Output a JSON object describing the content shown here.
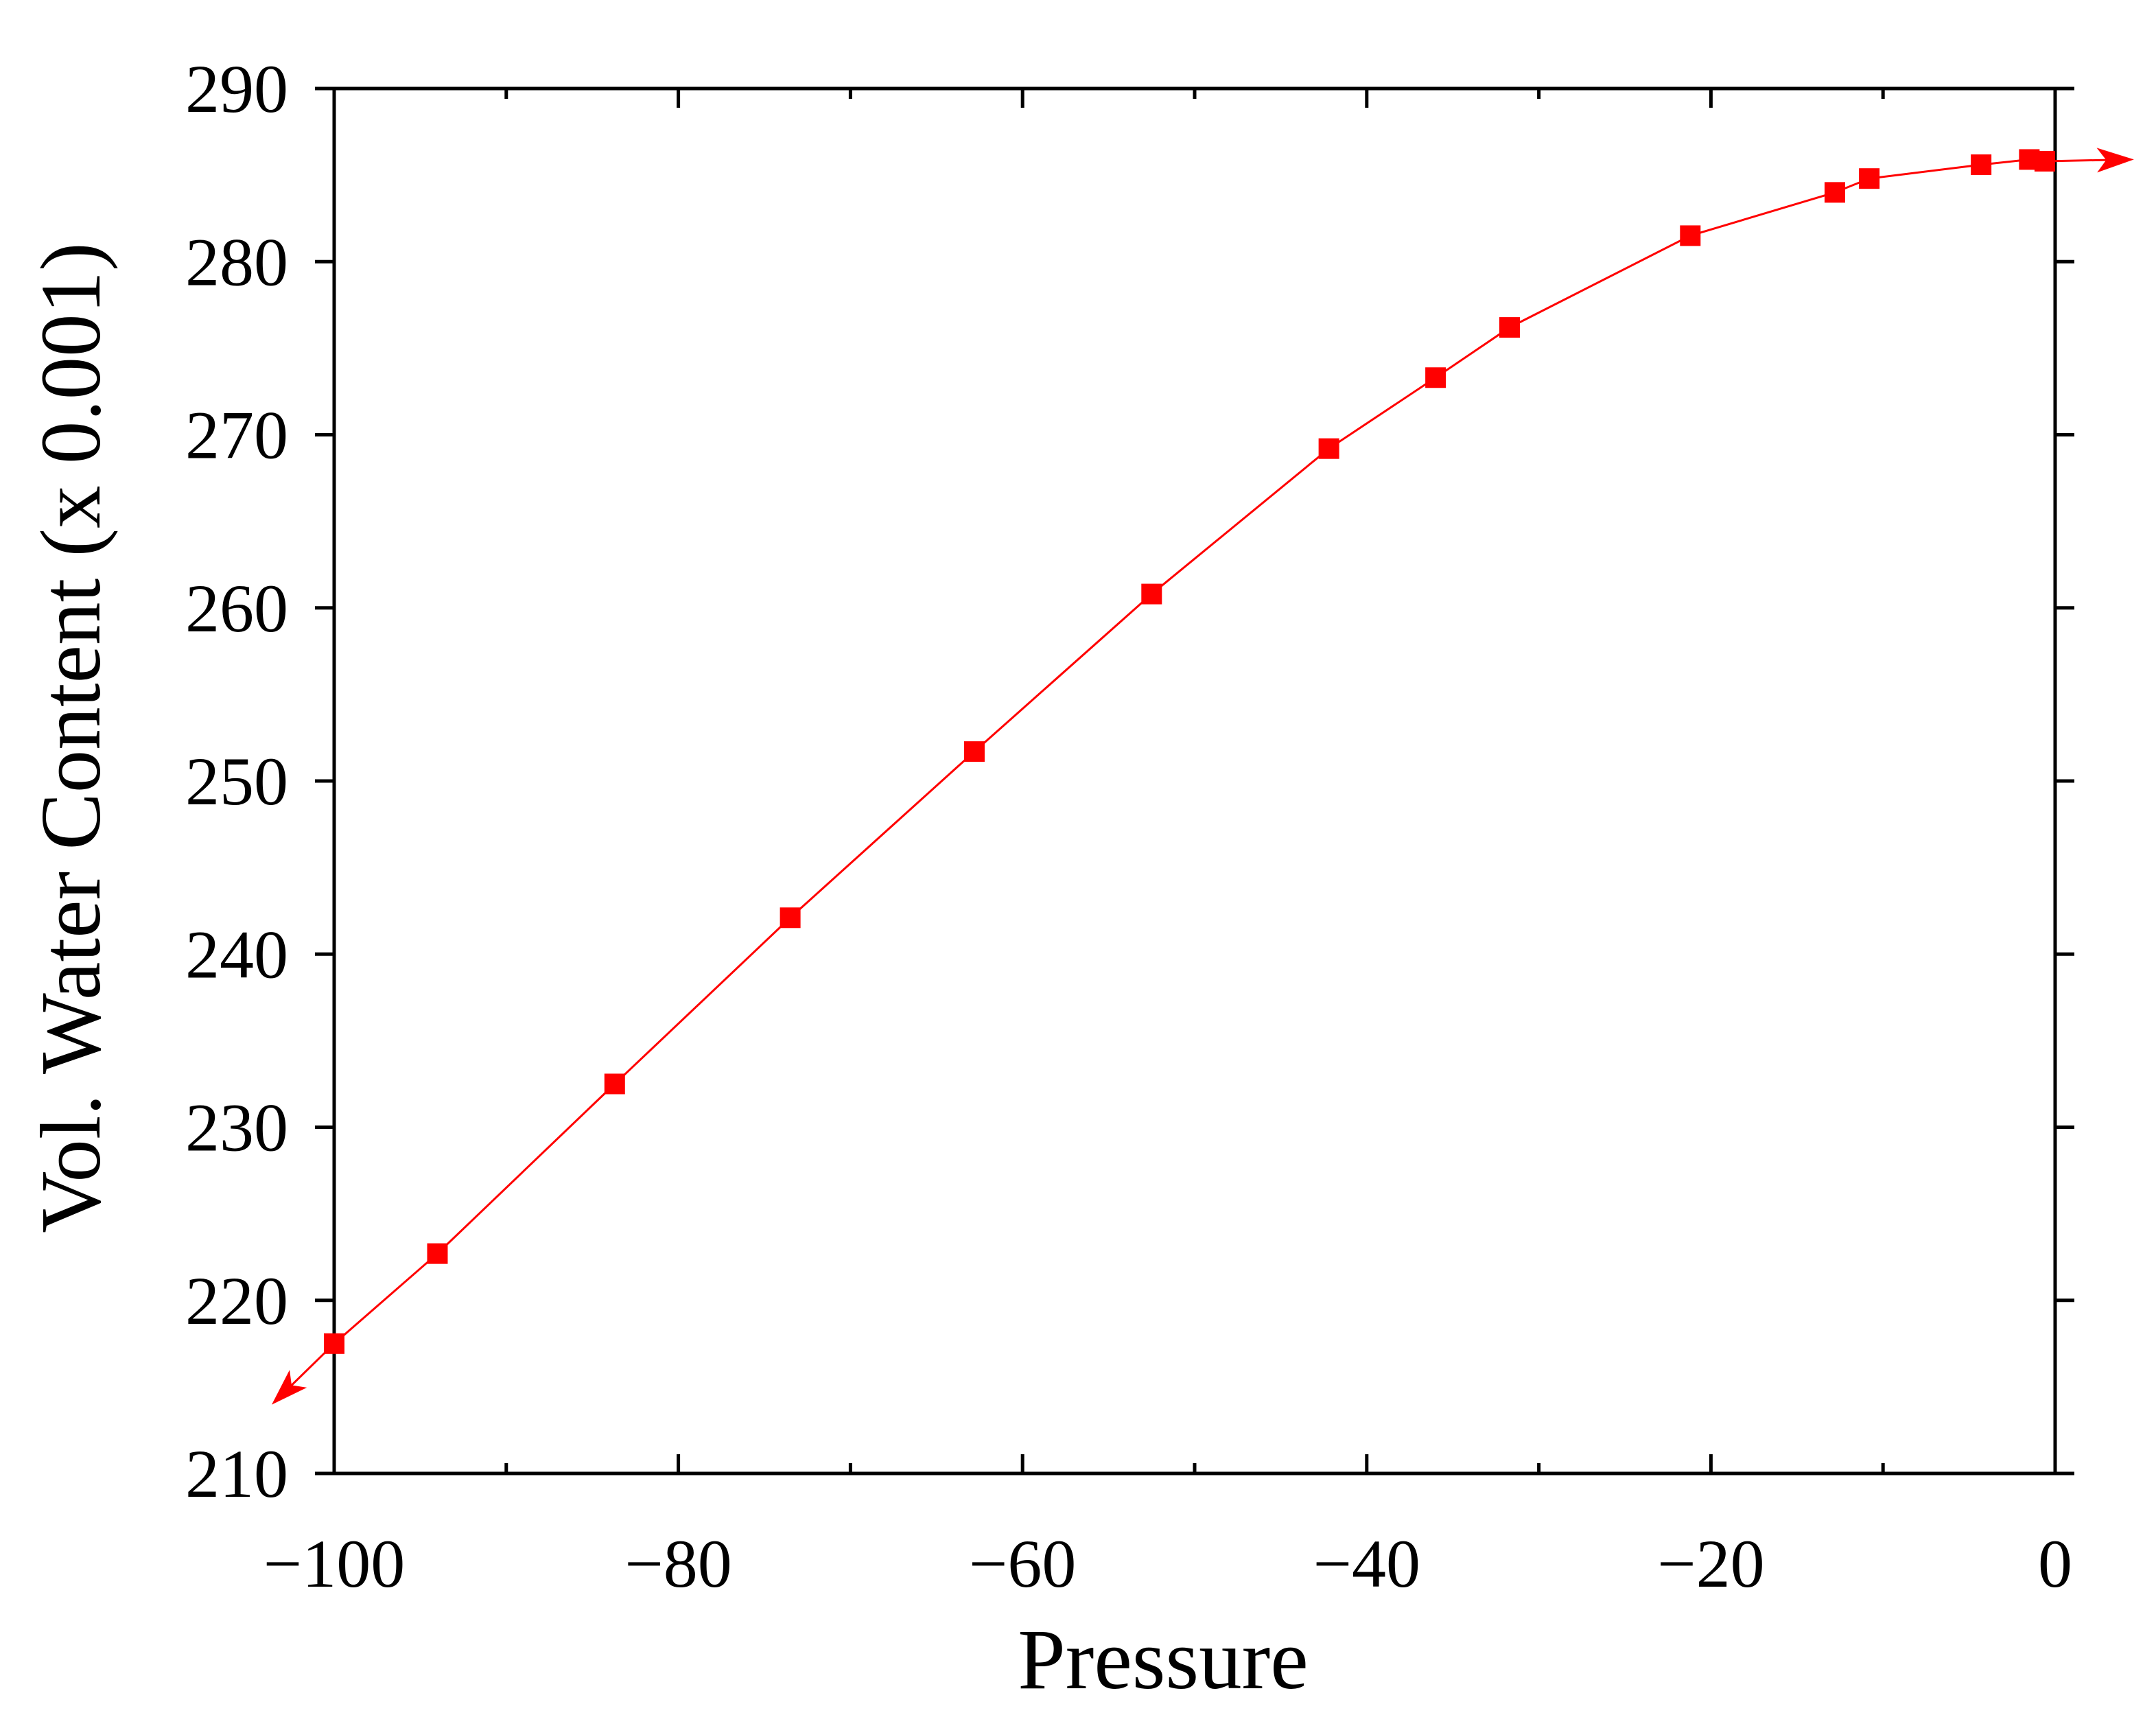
{
  "chart_data": {
    "type": "line",
    "xlabel": "Pressure",
    "ylabel": "Vol. Water Content (x 0.001)",
    "xlim": [
      -100,
      0
    ],
    "ylim": [
      210,
      290
    ],
    "x_ticks": [
      -100,
      -80,
      -60,
      -40,
      -20,
      0
    ],
    "x_tick_labels": [
      "−100",
      "−80",
      "−60",
      "−40",
      "−20",
      "0"
    ],
    "x_minor_ticks": [
      -90,
      -70,
      -50,
      -30,
      -10
    ],
    "y_ticks": [
      210,
      220,
      230,
      240,
      250,
      260,
      270,
      280,
      290
    ],
    "y_tick_labels": [
      "210",
      "220",
      "230",
      "240",
      "250",
      "260",
      "270",
      "280",
      "290"
    ],
    "grid": false,
    "marker": "square",
    "color": "#ff0000",
    "axis_color": "#000000",
    "series": [
      {
        "x": [
          -100,
          -94,
          -83.7,
          -73.5,
          -62.8,
          -52.5,
          -42.2,
          -36,
          -31.7,
          -21.2,
          -12.8,
          -10.8,
          -4.3,
          -1.5,
          -0.6
        ],
        "values": [
          217.5,
          222.7,
          232.5,
          242.1,
          251.7,
          260.8,
          269.2,
          273.3,
          276.2,
          281.5,
          284.0,
          284.8,
          285.6,
          285.9,
          285.8
        ]
      }
    ],
    "arrows": [
      {
        "from": [
          -100,
          217.5
        ],
        "to": [
          -103.5,
          214.1
        ]
      },
      {
        "from": [
          -0.6,
          285.8
        ],
        "to": [
          4.4,
          285.9
        ]
      }
    ]
  }
}
